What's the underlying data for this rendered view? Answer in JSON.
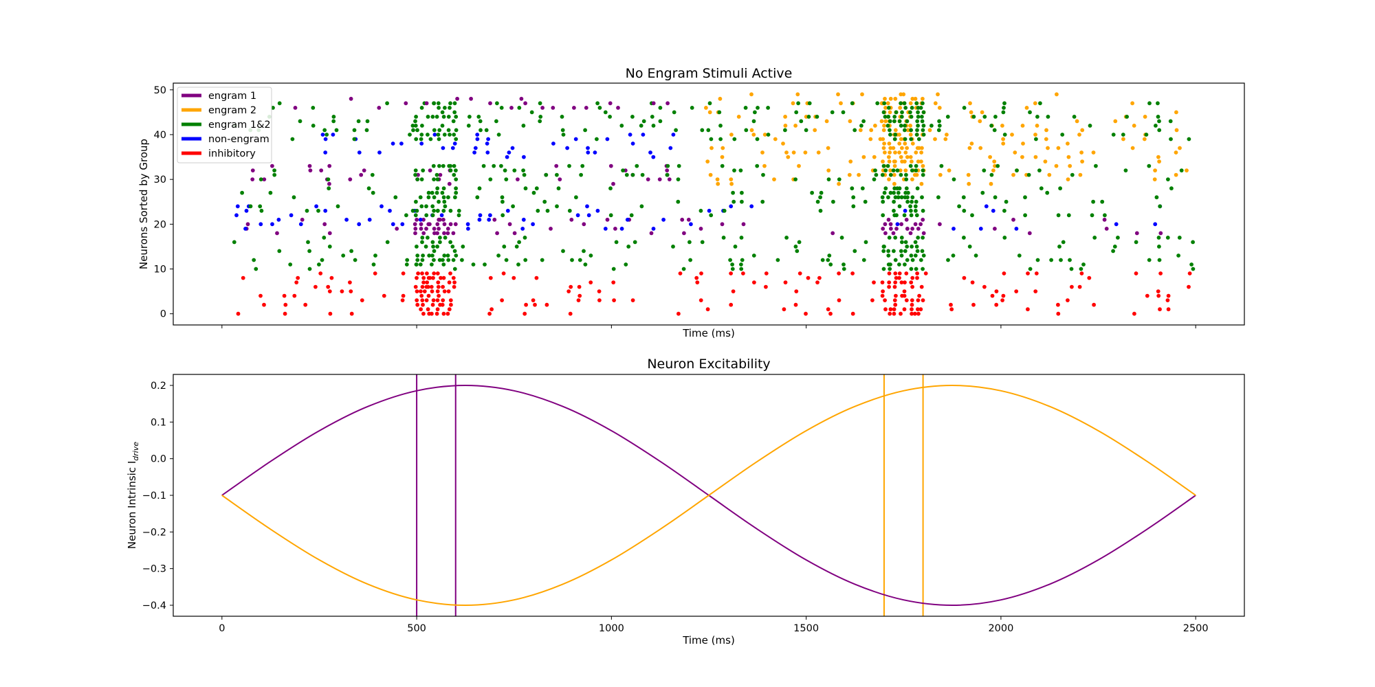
{
  "chart_data": [
    {
      "type": "scatter",
      "title": "No Engram Stimuli Active",
      "xlabel": "Time (ms)",
      "ylabel": "Neurons Sorted by Group",
      "xlim": [
        -125,
        2625
      ],
      "ylim": [
        -2.5,
        51.5
      ],
      "xticks": [
        0,
        500,
        1000,
        1500,
        2000,
        2500
      ],
      "show_xtick_labels": false,
      "yticks": [
        0,
        10,
        20,
        30,
        40,
        50
      ],
      "grid": false,
      "legend_position": "upper-left",
      "legend": [
        {
          "label": "engram 1",
          "color": "#800080"
        },
        {
          "label": "engram 2",
          "color": "#ffa500"
        },
        {
          "label": "engram 1&2",
          "color": "#008000"
        },
        {
          "label": "non-engram",
          "color": "#0000ff"
        },
        {
          "label": "inhibitory",
          "color": "#ff0000"
        }
      ],
      "groups": [
        {
          "name": "inhibitory",
          "rows": [
            0,
            9
          ],
          "color": "#ff0000",
          "active_windows": [
            [
              50,
              1120
            ],
            [
              1170,
              2500
            ]
          ],
          "dense_windows": [
            [
              500,
              600
            ],
            [
              1700,
              1800
            ]
          ]
        },
        {
          "name": "engram 1&2",
          "rows": [
            10,
            17
          ],
          "color": "#008000",
          "active_windows": [
            [
              30,
              1180
            ],
            [
              1200,
              2500
            ]
          ],
          "dense_windows": [
            [
              500,
              600
            ],
            [
              1700,
              1800
            ]
          ]
        },
        {
          "name": "engram 1",
          "rows": [
            18,
            21
          ],
          "color": "#800080",
          "active_windows": [
            [
              60,
              1180
            ]
          ],
          "sparse_windows": [
            [
              1200,
              2500
            ]
          ],
          "dense_windows": [
            [
              500,
              600
            ],
            [
              1700,
              1800
            ]
          ]
        },
        {
          "name": "non-engram",
          "rows": [
            19,
            24
          ],
          "color": "#0000ff",
          "active_windows": [
            [
              40,
              1180
            ]
          ],
          "sparse_windows": [
            [
              1200,
              2500
            ]
          ]
        },
        {
          "name": "engram 1&2",
          "rows": [
            22,
            28
          ],
          "color": "#008000",
          "active_windows": [
            [
              20,
              1180
            ],
            [
              1200,
              2500
            ]
          ],
          "dense_windows": [
            [
              500,
              600
            ],
            [
              1700,
              1800
            ]
          ]
        },
        {
          "name": "engram 2",
          "rows": [
            29,
            34
          ],
          "color": "#ffa500",
          "active_windows": [
            [
              1250,
              2500
            ]
          ],
          "sparse_windows": [
            [
              500,
              600
            ]
          ],
          "dense_windows": [
            [
              1700,
              1800
            ]
          ]
        },
        {
          "name": "engram 1",
          "rows": [
            29,
            33
          ],
          "color": "#800080",
          "active_windows": [
            [
              80,
              1180
            ]
          ]
        },
        {
          "name": "engram 1&2",
          "rows": [
            30,
            33
          ],
          "color": "#008000",
          "active_windows": [
            [
              80,
              1180
            ],
            [
              1200,
              2500
            ]
          ],
          "dense_windows": [
            [
              500,
              600
            ],
            [
              1700,
              1800
            ]
          ]
        },
        {
          "name": "non-engram",
          "rows": [
            35,
            40
          ],
          "color": "#0000ff",
          "active_windows": [
            [
              180,
              1180
            ]
          ]
        },
        {
          "name": "engram 2",
          "rows": [
            35,
            47
          ],
          "color": "#ffa500",
          "active_windows": [
            [
              1250,
              2500
            ]
          ],
          "dense_windows": [
            [
              1700,
              1800
            ]
          ]
        },
        {
          "name": "engram 1&2",
          "rows": [
            39,
            47
          ],
          "color": "#008000",
          "active_windows": [
            [
              40,
              1180
            ],
            [
              1200,
              2500
            ]
          ],
          "dense_windows": [
            [
              500,
              600
            ],
            [
              1700,
              1800
            ]
          ]
        },
        {
          "name": "engram 1",
          "rows": [
            46,
            48
          ],
          "color": "#800080",
          "active_windows": [
            [
              100,
              1180
            ]
          ]
        },
        {
          "name": "engram 2",
          "rows": [
            48,
            49
          ],
          "color": "#ffa500",
          "active_windows": [
            [
              1250,
              2500
            ]
          ],
          "dense_windows": [
            [
              1700,
              1800
            ]
          ]
        }
      ]
    },
    {
      "type": "line",
      "title": "Neuron Excitability",
      "xlabel": "Time (ms)",
      "ylabel": "Neuron Intrinsic I",
      "ylabel_subscript": "drive",
      "xlim": [
        -125,
        2625
      ],
      "ylim": [
        -0.43,
        0.23
      ],
      "xticks": [
        0,
        500,
        1000,
        1500,
        2000,
        2500
      ],
      "yticks": [
        -0.4,
        -0.3,
        -0.2,
        -0.1,
        0.0,
        0.1,
        0.2
      ],
      "ytick_labels": [
        "−0.4",
        "−0.3",
        "−0.2",
        "−0.1",
        "0.0",
        "0.1",
        "0.2"
      ],
      "grid": false,
      "series": [
        {
          "color": "#800080",
          "x": [
            0,
            125,
            250,
            375,
            500,
            625,
            750,
            875,
            1000,
            1125,
            1250,
            1375,
            1500,
            1625,
            1750,
            1875,
            2000,
            2125,
            2250,
            2375,
            2500
          ],
          "y": [
            -0.1,
            -0.0073,
            0.0763,
            0.1427,
            0.1853,
            0.2,
            0.1853,
            0.1427,
            0.0763,
            -0.0073,
            -0.1,
            -0.1927,
            -0.2763,
            -0.3427,
            -0.3853,
            -0.4,
            -0.3853,
            -0.3427,
            -0.2763,
            -0.1927,
            -0.1
          ]
        },
        {
          "color": "#ffa500",
          "x": [
            0,
            125,
            250,
            375,
            500,
            625,
            750,
            875,
            1000,
            1125,
            1250,
            1375,
            1500,
            1625,
            1750,
            1875,
            2000,
            2125,
            2250,
            2375,
            2500
          ],
          "y": [
            -0.1,
            -0.1927,
            -0.2763,
            -0.3427,
            -0.3853,
            -0.4,
            -0.3853,
            -0.3427,
            -0.2763,
            -0.1927,
            -0.1,
            -0.0073,
            0.0763,
            0.1427,
            0.1853,
            0.2,
            0.1853,
            0.1427,
            0.0763,
            -0.0073,
            -0.1
          ]
        }
      ],
      "vlines": [
        {
          "x": 500,
          "color": "#800080"
        },
        {
          "x": 600,
          "color": "#800080"
        },
        {
          "x": 1700,
          "color": "#ffa500"
        },
        {
          "x": 1800,
          "color": "#ffa500"
        }
      ]
    }
  ]
}
